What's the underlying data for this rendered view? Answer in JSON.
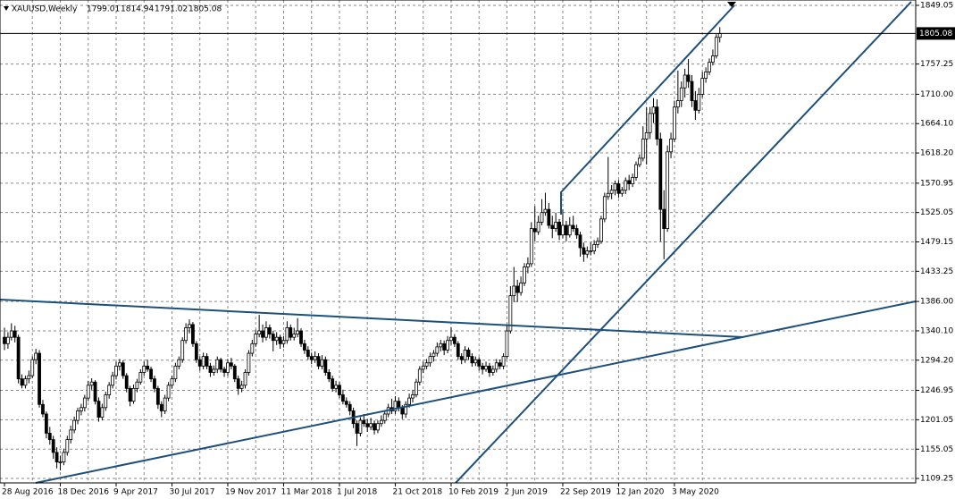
{
  "chart_data": {
    "type": "candlestick",
    "symbol": "XAUUSD,Weekly",
    "up_color": "#ffffff",
    "down_color": "#000000",
    "grid": true,
    "ylim": [
      1102.3,
      1857.4
    ],
    "yticks": [
      1109.25,
      1155.05,
      1201.05,
      1246.95,
      {
        "value": 1294.2,
        "label": "1294.20"
      },
      {
        "value": 1340.1,
        "label": "1340.10"
      },
      {
        "value": 1386,
        "label": "1386.00"
      },
      1433.25,
      1479.15,
      1525.05,
      1570.95,
      {
        "value": 1618.2,
        "label": "1618.20"
      },
      {
        "value": 1664.1,
        "label": "1664.10"
      },
      {
        "value": 1710,
        "label": "1710.00"
      },
      1757.25,
      1849.05
    ],
    "categories": [
      "28 Aug 2016",
      null,
      null,
      null,
      null,
      null,
      null,
      null,
      null,
      null,
      null,
      null,
      null,
      null,
      null,
      null,
      "18 Dec 2016",
      null,
      null,
      null,
      null,
      null,
      null,
      null,
      null,
      null,
      null,
      null,
      null,
      null,
      null,
      null,
      "9 Apr 2017",
      null,
      null,
      null,
      null,
      null,
      null,
      null,
      null,
      null,
      null,
      null,
      null,
      null,
      null,
      null,
      "30 Jul 2017",
      null,
      null,
      null,
      null,
      null,
      null,
      null,
      null,
      null,
      null,
      null,
      null,
      null,
      null,
      null,
      "19 Nov 2017",
      null,
      null,
      null,
      null,
      null,
      null,
      null,
      null,
      null,
      null,
      null,
      null,
      null,
      null,
      null,
      "11 Mar 2018",
      null,
      null,
      null,
      null,
      null,
      null,
      null,
      null,
      null,
      null,
      null,
      null,
      null,
      null,
      null,
      "1 Jul 2018",
      null,
      null,
      null,
      null,
      null,
      null,
      null,
      null,
      null,
      null,
      null,
      null,
      null,
      null,
      null,
      "21 Oct 2018",
      null,
      null,
      null,
      null,
      null,
      null,
      null,
      null,
      null,
      null,
      null,
      null,
      null,
      null,
      null,
      "10 Feb 2019",
      null,
      null,
      null,
      null,
      null,
      null,
      null,
      null,
      null,
      null,
      null,
      null,
      null,
      null,
      null,
      "2 Jun 2019",
      null,
      null,
      null,
      null,
      null,
      null,
      null,
      null,
      null,
      null,
      null,
      null,
      null,
      null,
      null,
      "22 Sep 2019",
      null,
      null,
      null,
      null,
      null,
      null,
      null,
      null,
      null,
      null,
      null,
      null,
      null,
      null,
      null,
      "12 Jan 2020",
      null,
      null,
      null,
      null,
      null,
      null,
      null,
      null,
      null,
      null,
      null,
      null,
      null,
      null,
      null,
      "3 May 2020",
      null,
      null,
      null,
      null,
      null,
      null,
      null,
      null,
      null,
      null,
      null,
      null,
      null
    ],
    "ohlc": [
      [
        1330,
        1345,
        1310,
        1320
      ],
      [
        1320,
        1338,
        1312,
        1330
      ],
      [
        1330,
        1352,
        1325,
        1340
      ],
      [
        1340,
        1348,
        1322,
        1330
      ],
      [
        1330,
        1334,
        1258,
        1265
      ],
      [
        1265,
        1272,
        1250,
        1255
      ],
      [
        1255,
        1270,
        1250,
        1265
      ],
      [
        1265,
        1278,
        1258,
        1270
      ],
      [
        1270,
        1300,
        1266,
        1295
      ],
      [
        1295,
        1312,
        1288,
        1305
      ],
      [
        1305,
        1310,
        1220,
        1225
      ],
      [
        1225,
        1232,
        1205,
        1210
      ],
      [
        1210,
        1214,
        1172,
        1180
      ],
      [
        1180,
        1190,
        1162,
        1170
      ],
      [
        1170,
        1176,
        1140,
        1150
      ],
      [
        1150,
        1158,
        1125,
        1135
      ],
      [
        1135,
        1145,
        1122,
        1135
      ],
      [
        1135,
        1156,
        1130,
        1150
      ],
      [
        1150,
        1176,
        1145,
        1170
      ],
      [
        1170,
        1192,
        1164,
        1185
      ],
      [
        1185,
        1206,
        1180,
        1200
      ],
      [
        1200,
        1220,
        1194,
        1215
      ],
      [
        1215,
        1226,
        1208,
        1220
      ],
      [
        1220,
        1240,
        1214,
        1235
      ],
      [
        1235,
        1262,
        1230,
        1255
      ],
      [
        1255,
        1266,
        1248,
        1260
      ],
      [
        1260,
        1263,
        1225,
        1230
      ],
      [
        1230,
        1236,
        1198,
        1205
      ],
      [
        1205,
        1226,
        1200,
        1220
      ],
      [
        1220,
        1245,
        1215,
        1240
      ],
      [
        1240,
        1260,
        1234,
        1255
      ],
      [
        1255,
        1276,
        1250,
        1270
      ],
      [
        1270,
        1292,
        1264,
        1285
      ],
      [
        1285,
        1296,
        1278,
        1290
      ],
      [
        1290,
        1294,
        1265,
        1270
      ],
      [
        1270,
        1274,
        1244,
        1250
      ],
      [
        1250,
        1254,
        1222,
        1230
      ],
      [
        1230,
        1256,
        1226,
        1250
      ],
      [
        1250,
        1265,
        1244,
        1260
      ],
      [
        1260,
        1280,
        1256,
        1275
      ],
      [
        1275,
        1292,
        1270,
        1285
      ],
      [
        1285,
        1295,
        1276,
        1280
      ],
      [
        1280,
        1284,
        1260,
        1265
      ],
      [
        1265,
        1270,
        1244,
        1250
      ],
      [
        1250,
        1254,
        1218,
        1225
      ],
      [
        1225,
        1230,
        1205,
        1215
      ],
      [
        1215,
        1240,
        1210,
        1235
      ],
      [
        1235,
        1260,
        1230,
        1255
      ],
      [
        1255,
        1270,
        1250,
        1265
      ],
      [
        1265,
        1290,
        1260,
        1285
      ],
      [
        1285,
        1300,
        1280,
        1295
      ],
      [
        1295,
        1330,
        1290,
        1325
      ],
      [
        1325,
        1352,
        1320,
        1345
      ],
      [
        1345,
        1358,
        1336,
        1350
      ],
      [
        1350,
        1354,
        1315,
        1320
      ],
      [
        1320,
        1324,
        1290,
        1295
      ],
      [
        1295,
        1300,
        1278,
        1285
      ],
      [
        1285,
        1306,
        1280,
        1300
      ],
      [
        1300,
        1305,
        1280,
        1285
      ],
      [
        1285,
        1290,
        1268,
        1275
      ],
      [
        1275,
        1286,
        1270,
        1280
      ],
      [
        1280,
        1300,
        1274,
        1295
      ],
      [
        1295,
        1298,
        1275,
        1280
      ],
      [
        1280,
        1284,
        1268,
        1275
      ],
      [
        1275,
        1296,
        1270,
        1290
      ],
      [
        1290,
        1298,
        1280,
        1285
      ],
      [
        1285,
        1288,
        1260,
        1265
      ],
      [
        1265,
        1270,
        1240,
        1250
      ],
      [
        1250,
        1262,
        1244,
        1255
      ],
      [
        1255,
        1280,
        1250,
        1275
      ],
      [
        1275,
        1310,
        1270,
        1305
      ],
      [
        1305,
        1326,
        1300,
        1320
      ],
      [
        1320,
        1342,
        1315,
        1335
      ],
      [
        1335,
        1365,
        1330,
        1340
      ],
      [
        1340,
        1350,
        1322,
        1330
      ],
      [
        1330,
        1355,
        1325,
        1345
      ],
      [
        1345,
        1350,
        1328,
        1335
      ],
      [
        1335,
        1340,
        1308,
        1325
      ],
      [
        1325,
        1338,
        1318,
        1330
      ],
      [
        1330,
        1334,
        1312,
        1320
      ],
      [
        1320,
        1332,
        1314,
        1325
      ],
      [
        1325,
        1355,
        1320,
        1345
      ],
      [
        1345,
        1350,
        1325,
        1330
      ],
      [
        1330,
        1345,
        1325,
        1335
      ],
      [
        1335,
        1360,
        1330,
        1340
      ],
      [
        1340,
        1344,
        1315,
        1320
      ],
      [
        1320,
        1326,
        1304,
        1310
      ],
      [
        1310,
        1316,
        1295,
        1300
      ],
      [
        1300,
        1306,
        1288,
        1295
      ],
      [
        1295,
        1308,
        1290,
        1300
      ],
      [
        1300,
        1305,
        1280,
        1285
      ],
      [
        1285,
        1302,
        1280,
        1295
      ],
      [
        1295,
        1300,
        1270,
        1275
      ],
      [
        1275,
        1280,
        1260,
        1265
      ],
      [
        1265,
        1270,
        1245,
        1250
      ],
      [
        1250,
        1262,
        1244,
        1255
      ],
      [
        1255,
        1260,
        1235,
        1240
      ],
      [
        1240,
        1248,
        1225,
        1230
      ],
      [
        1230,
        1236,
        1220,
        1225
      ],
      [
        1225,
        1230,
        1208,
        1215
      ],
      [
        1215,
        1220,
        1188,
        1195
      ],
      [
        1195,
        1200,
        1160,
        1180
      ],
      [
        1180,
        1205,
        1175,
        1200
      ],
      [
        1200,
        1210,
        1190,
        1195
      ],
      [
        1195,
        1202,
        1182,
        1190
      ],
      [
        1190,
        1204,
        1185,
        1195
      ],
      [
        1195,
        1200,
        1178,
        1185
      ],
      [
        1185,
        1200,
        1180,
        1195
      ],
      [
        1195,
        1208,
        1190,
        1200
      ],
      [
        1200,
        1215,
        1195,
        1210
      ],
      [
        1210,
        1226,
        1205,
        1220
      ],
      [
        1220,
        1234,
        1210,
        1215
      ],
      [
        1215,
        1238,
        1210,
        1230
      ],
      [
        1230,
        1236,
        1214,
        1220
      ],
      [
        1220,
        1224,
        1202,
        1210
      ],
      [
        1210,
        1230,
        1204,
        1225
      ],
      [
        1225,
        1242,
        1220,
        1235
      ],
      [
        1235,
        1248,
        1228,
        1240
      ],
      [
        1240,
        1265,
        1236,
        1260
      ],
      [
        1260,
        1285,
        1255,
        1280
      ],
      [
        1280,
        1292,
        1274,
        1285
      ],
      [
        1285,
        1296,
        1280,
        1290
      ],
      [
        1290,
        1306,
        1284,
        1300
      ],
      [
        1300,
        1310,
        1292,
        1305
      ],
      [
        1305,
        1322,
        1300,
        1315
      ],
      [
        1315,
        1326,
        1308,
        1320
      ],
      [
        1320,
        1325,
        1302,
        1310
      ],
      [
        1310,
        1332,
        1305,
        1325
      ],
      [
        1325,
        1346,
        1318,
        1330
      ],
      [
        1330,
        1335,
        1315,
        1320
      ],
      [
        1320,
        1324,
        1295,
        1300
      ],
      [
        1300,
        1305,
        1288,
        1295
      ],
      [
        1295,
        1316,
        1290,
        1310
      ],
      [
        1310,
        1314,
        1295,
        1300
      ],
      [
        1300,
        1305,
        1284,
        1290
      ],
      [
        1290,
        1300,
        1285,
        1295
      ],
      [
        1295,
        1299,
        1278,
        1285
      ],
      [
        1285,
        1290,
        1272,
        1280
      ],
      [
        1280,
        1292,
        1276,
        1285
      ],
      [
        1285,
        1290,
        1268,
        1275
      ],
      [
        1275,
        1286,
        1270,
        1280
      ],
      [
        1280,
        1296,
        1275,
        1290
      ],
      [
        1290,
        1295,
        1280,
        1285
      ],
      [
        1285,
        1305,
        1280,
        1300
      ],
      [
        1300,
        1348,
        1296,
        1340
      ],
      [
        1340,
        1410,
        1336,
        1395
      ],
      [
        1395,
        1440,
        1385,
        1410
      ],
      [
        1410,
        1420,
        1385,
        1400
      ],
      [
        1400,
        1425,
        1395,
        1415
      ],
      [
        1415,
        1446,
        1410,
        1440
      ],
      [
        1440,
        1455,
        1430,
        1445
      ],
      [
        1445,
        1510,
        1440,
        1500
      ],
      [
        1500,
        1535,
        1480,
        1495
      ],
      [
        1495,
        1520,
        1490,
        1510
      ],
      [
        1510,
        1546,
        1505,
        1525
      ],
      [
        1525,
        1556,
        1520,
        1530
      ],
      [
        1530,
        1540,
        1500,
        1505
      ],
      [
        1505,
        1520,
        1485,
        1500
      ],
      [
        1500,
        1525,
        1495,
        1510
      ],
      [
        1510,
        1515,
        1482,
        1490
      ],
      [
        1490,
        1530,
        1485,
        1505
      ],
      [
        1505,
        1512,
        1480,
        1490
      ],
      [
        1490,
        1518,
        1486,
        1505
      ],
      [
        1505,
        1520,
        1495,
        1500
      ],
      [
        1500,
        1506,
        1484,
        1490
      ],
      [
        1490,
        1495,
        1456,
        1470
      ],
      [
        1470,
        1478,
        1448,
        1460
      ],
      [
        1460,
        1472,
        1454,
        1465
      ],
      [
        1465,
        1478,
        1458,
        1465
      ],
      [
        1465,
        1482,
        1460,
        1475
      ],
      [
        1475,
        1486,
        1470,
        1480
      ],
      [
        1480,
        1520,
        1476,
        1515
      ],
      [
        1515,
        1556,
        1510,
        1550
      ],
      [
        1550,
        1612,
        1545,
        1555
      ],
      [
        1555,
        1568,
        1546,
        1560
      ],
      [
        1560,
        1575,
        1552,
        1570
      ],
      [
        1570,
        1576,
        1548,
        1555
      ],
      [
        1555,
        1565,
        1550,
        1560
      ],
      [
        1560,
        1580,
        1554,
        1575
      ],
      [
        1575,
        1584,
        1560,
        1570
      ],
      [
        1570,
        1586,
        1565,
        1580
      ],
      [
        1580,
        1605,
        1575,
        1600
      ],
      [
        1600,
        1616,
        1596,
        1610
      ],
      [
        1610,
        1660,
        1605,
        1640
      ],
      [
        1640,
        1690,
        1600,
        1650
      ],
      [
        1650,
        1690,
        1640,
        1680
      ],
      [
        1680,
        1704,
        1665,
        1690
      ],
      [
        1690,
        1702,
        1630,
        1640
      ],
      [
        1640,
        1650,
        1480,
        1530
      ],
      [
        1530,
        1560,
        1452,
        1500
      ],
      [
        1500,
        1630,
        1495,
        1620
      ],
      [
        1620,
        1650,
        1610,
        1640
      ],
      [
        1640,
        1700,
        1635,
        1690
      ],
      [
        1690,
        1747,
        1680,
        1700
      ],
      [
        1700,
        1730,
        1690,
        1720
      ],
      [
        1720,
        1750,
        1705,
        1740
      ],
      [
        1740,
        1765,
        1720,
        1730
      ],
      [
        1730,
        1740,
        1690,
        1700
      ],
      [
        1700,
        1715,
        1670,
        1685
      ],
      [
        1685,
        1720,
        1680,
        1710
      ],
      [
        1710,
        1745,
        1705,
        1735
      ],
      [
        1735,
        1752,
        1728,
        1745
      ],
      [
        1745,
        1766,
        1740,
        1760
      ],
      [
        1760,
        1780,
        1755,
        1770
      ],
      [
        1770,
        1804,
        1766,
        1799
      ],
      [
        1799.01,
        1814.94,
        1791.02,
        1805.08
      ]
    ]
  }
}
